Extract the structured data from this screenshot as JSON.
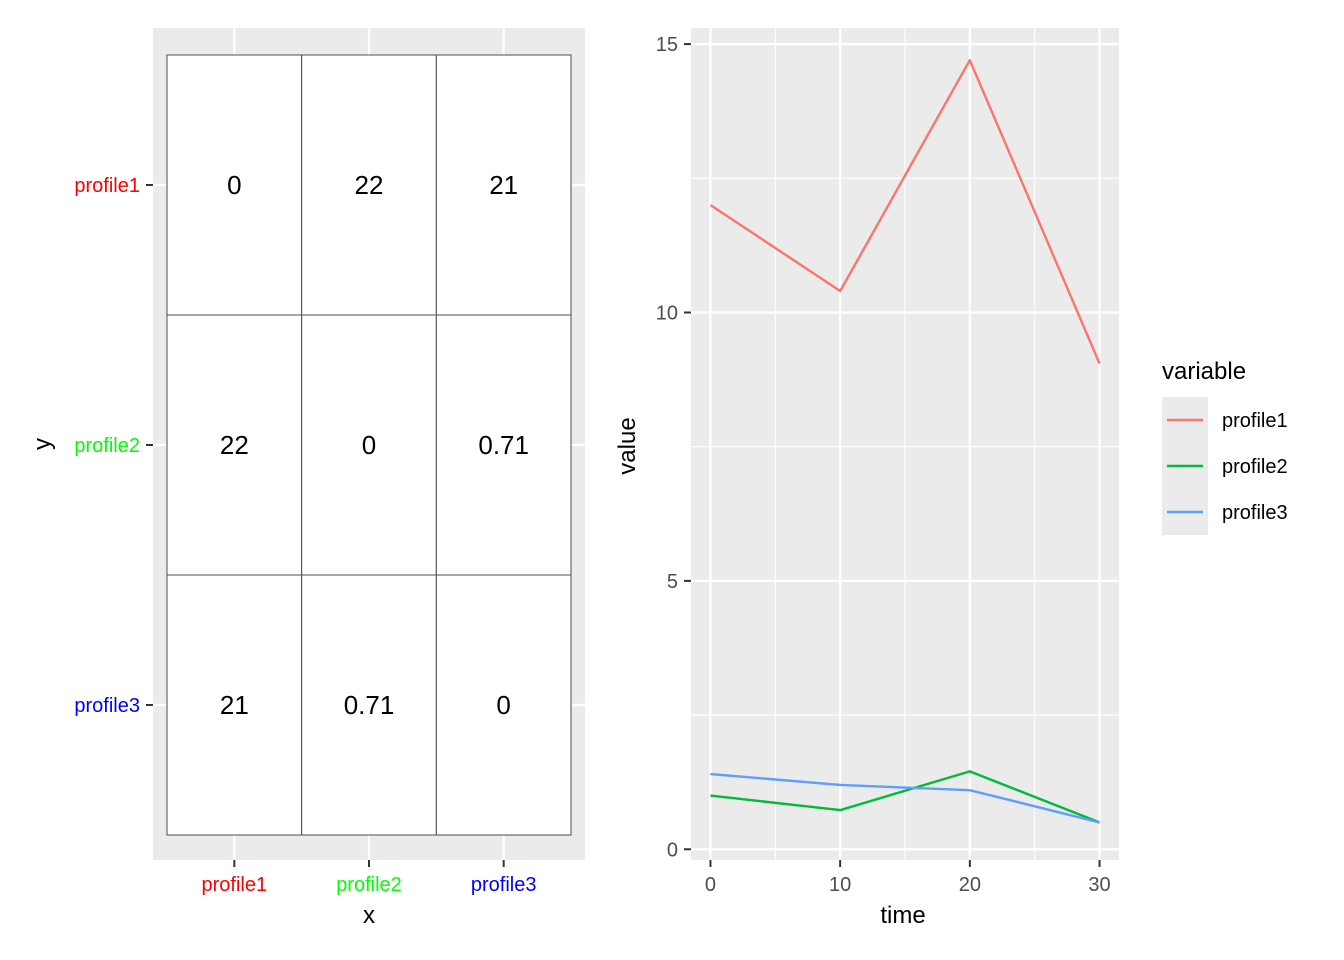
{
  "chart_data": [
    {
      "type": "heatmap",
      "xlabel": "x",
      "ylabel": "y",
      "x_categories": [
        "profile1",
        "profile2",
        "profile3"
      ],
      "y_categories": [
        "profile1",
        "profile2",
        "profile3"
      ],
      "category_colors": {
        "profile1": "#ff0000",
        "profile2": "#00ff00",
        "profile3": "#0000ff"
      },
      "cells": [
        [
          "0",
          "22",
          "21"
        ],
        [
          "22",
          "0",
          "0.71"
        ],
        [
          "21",
          "0.71",
          "0"
        ]
      ],
      "grid": true
    },
    {
      "type": "line",
      "xlabel": "time",
      "ylabel": "value",
      "x": [
        0,
        10,
        20,
        30
      ],
      "xlim": [
        -1.5,
        31.5
      ],
      "ylim": [
        -0.2,
        15.3
      ],
      "xticks": [
        0,
        10,
        20,
        30
      ],
      "yticks": [
        0,
        5,
        10,
        15
      ],
      "grid": true,
      "legend_title": "variable",
      "legend_placement": "right",
      "series": [
        {
          "name": "profile1",
          "color": "#F8766D",
          "values": [
            12.0,
            10.4,
            14.7,
            9.05
          ]
        },
        {
          "name": "profile2",
          "color": "#00BA38",
          "values": [
            1.0,
            0.73,
            1.45,
            0.5
          ]
        },
        {
          "name": "profile3",
          "color": "#619CFF",
          "values": [
            1.4,
            1.2,
            1.1,
            0.5
          ]
        }
      ]
    }
  ]
}
